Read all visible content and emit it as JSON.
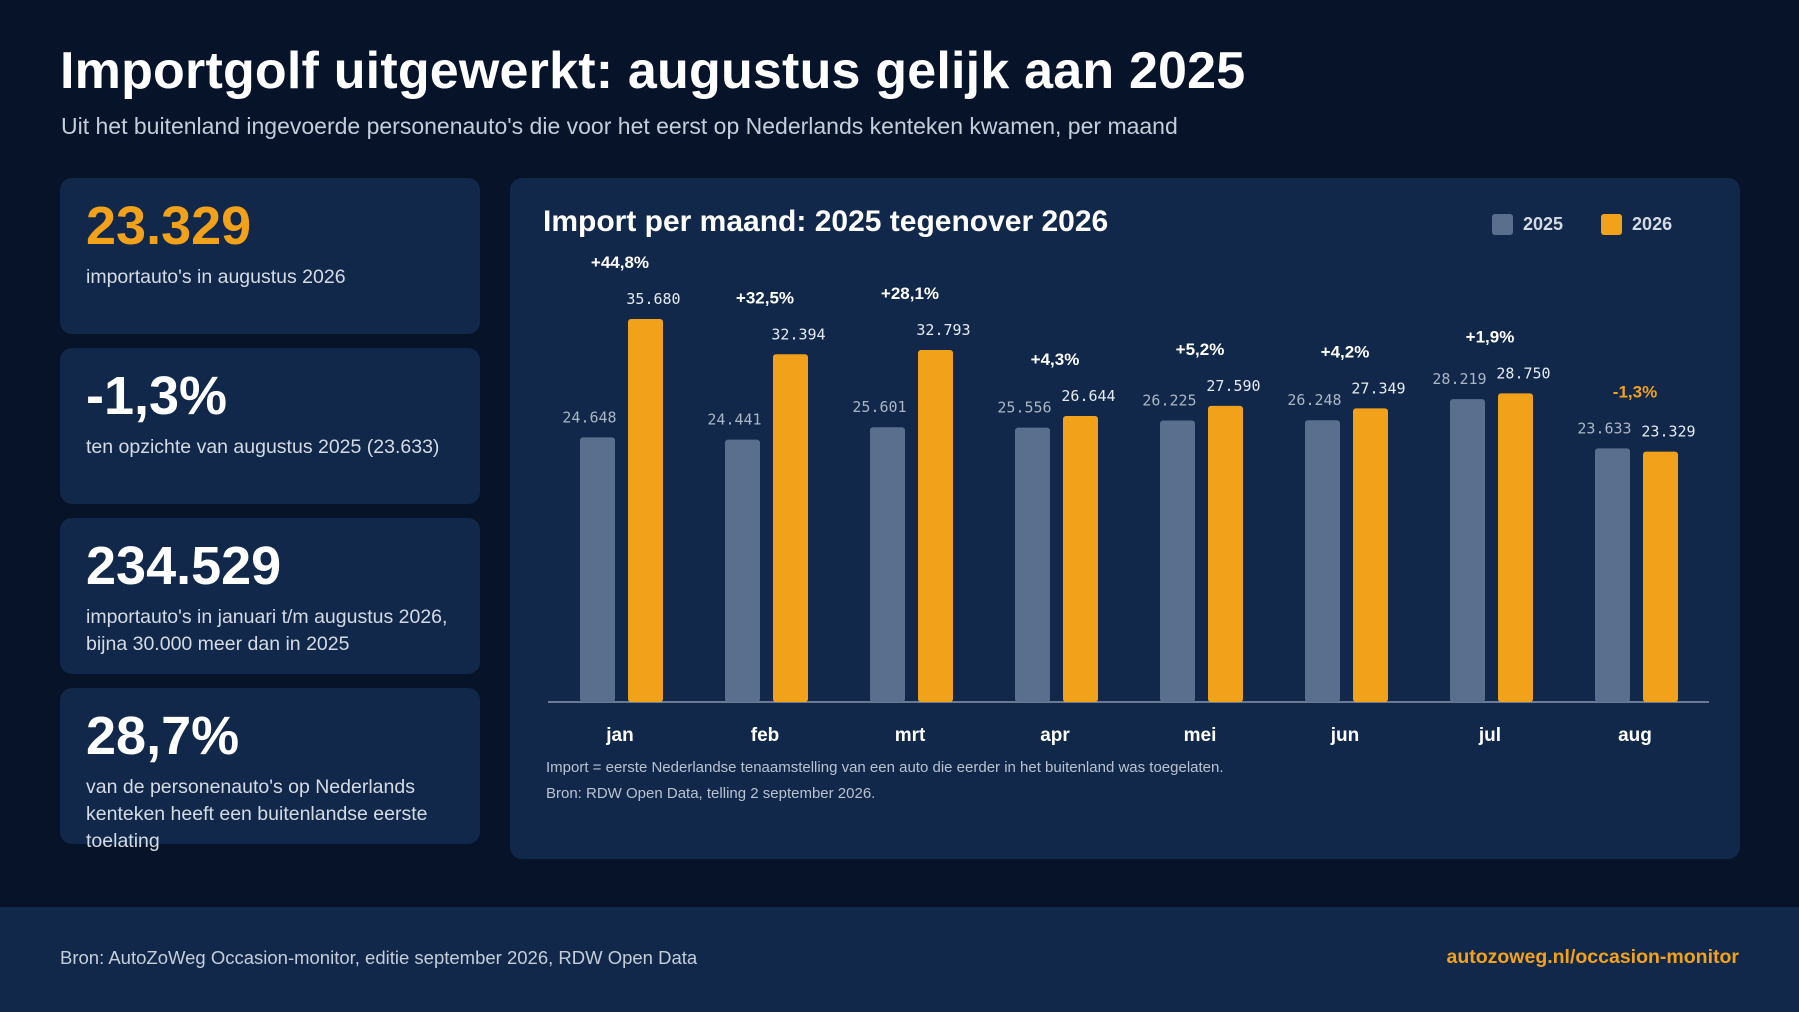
{
  "header": {
    "title": "Importgolf uitgewerkt: augustus gelijk aan 2025",
    "subtitle": "Uit het buitenland ingevoerde personenauto's die voor het eerst op Nederlands kenteken kwamen, per maand"
  },
  "kpis": [
    {
      "value": "23.329",
      "label": "importauto's in augustus 2026"
    },
    {
      "value": "-1,3%",
      "label": "ten opzichte van augustus 2025 (23.633)"
    },
    {
      "value": "234.529",
      "label": "importauto's in januari t/m augustus 2026, bijna 30.000 meer dan in 2025"
    },
    {
      "value": "28,7%",
      "label": "van de personenauto's op Nederlands kenteken heeft een buitenlandse eerste toelating"
    }
  ],
  "colors": {
    "series_2025": "#5a6f8e",
    "series_2026": "#f2a21a",
    "negative_change": "#f2a21a",
    "positive_change": "#ffffff"
  },
  "chart_data": {
    "type": "bar",
    "title": "Import per maand: 2025 tegenover 2026",
    "xlabel": "",
    "ylabel": "",
    "categories": [
      "jan",
      "feb",
      "mrt",
      "apr",
      "mei",
      "jun",
      "jul",
      "aug"
    ],
    "series": [
      {
        "name": "2025",
        "values": [
          24648,
          24441,
          25601,
          25556,
          26225,
          26248,
          28219,
          23633
        ],
        "labels": [
          "24.648",
          "24.441",
          "25.601",
          "25.556",
          "26.225",
          "26.248",
          "28.219",
          "23.633"
        ]
      },
      {
        "name": "2026",
        "values": [
          35680,
          32394,
          32793,
          26644,
          27590,
          27349,
          28750,
          23329
        ],
        "labels": [
          "35.680",
          "32.394",
          "32.793",
          "26.644",
          "27.590",
          "27.349",
          "28.750",
          "23.329"
        ]
      }
    ],
    "changes": [
      "+44,8%",
      "+32,5%",
      "+28,1%",
      "+4,3%",
      "+5,2%",
      "+4,2%",
      "+1,9%",
      "-1,3%"
    ],
    "ylim": [
      0,
      36000
    ],
    "grid": false,
    "legend": "top-right"
  },
  "notes": {
    "definition": "Import = eerste Nederlandse tenaamstelling van een auto die eerder in het buitenland was toegelaten.",
    "source": "Bron: RDW Open Data, telling 2 september 2026."
  },
  "footer": {
    "source": "Bron: AutoZoWeg Occasion-monitor, editie september 2026, RDW Open Data",
    "link": "autozoweg.nl/occasion-monitor"
  }
}
